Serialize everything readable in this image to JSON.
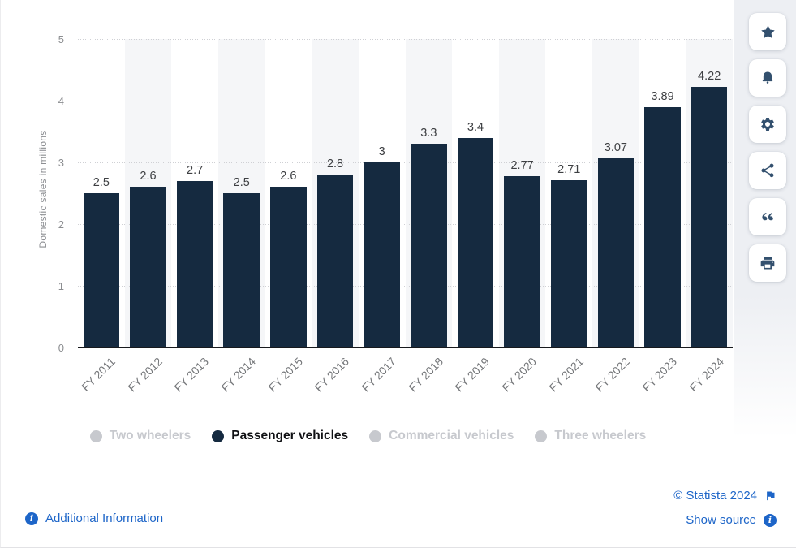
{
  "chart_data": {
    "type": "bar",
    "categories": [
      "FY 2011",
      "FY 2012",
      "FY 2013",
      "FY 2014",
      "FY 2015",
      "FY 2016",
      "FY 2017",
      "FY 2018",
      "FY 2019",
      "FY 2020",
      "FY 2021",
      "FY 2022",
      "FY 2023",
      "FY 2024"
    ],
    "series": [
      {
        "name": "Passenger vehicles",
        "values": [
          2.5,
          2.6,
          2.7,
          2.5,
          2.6,
          2.8,
          3,
          3.3,
          3.4,
          2.77,
          2.71,
          3.07,
          3.89,
          4.22
        ],
        "labels": [
          "2.5",
          "2.6",
          "2.7",
          "2.5",
          "2.6",
          "2.8",
          "3",
          "3.3",
          "3.4",
          "2.77",
          "2.71",
          "3.07",
          "3.89",
          "4.22"
        ],
        "color": "#152a40"
      }
    ],
    "title": "",
    "xlabel": "",
    "ylabel": "Domestic sales in millions",
    "ylim": [
      0,
      5
    ],
    "yticks": [
      "0",
      "1",
      "2",
      "3",
      "4",
      "5"
    ],
    "grid": "horizontal-dotted",
    "legend_position": "bottom",
    "alt_column_shading": true
  },
  "legend": {
    "items": [
      {
        "label": "Two wheelers",
        "active": false
      },
      {
        "label": "Passenger vehicles",
        "active": true
      },
      {
        "label": "Commercial vehicles",
        "active": false
      },
      {
        "label": "Three wheelers",
        "active": false
      }
    ],
    "active_color": "#152a40",
    "active_text_color": "#101114",
    "inactive_color": "#c7c9ce"
  },
  "toolbar": {
    "buttons": [
      {
        "name": "favorite",
        "icon": "star-icon"
      },
      {
        "name": "notifications",
        "icon": "bell-icon"
      },
      {
        "name": "settings",
        "icon": "gear-icon"
      },
      {
        "name": "share",
        "icon": "share-icon"
      },
      {
        "name": "cite",
        "icon": "quote-icon"
      },
      {
        "name": "print",
        "icon": "printer-icon"
      }
    ],
    "icon_color": "#33506e"
  },
  "footer": {
    "additional_information": {
      "label": "Additional Information",
      "icon": "info-icon"
    },
    "copyright": {
      "label": "© Statista 2024",
      "icon": "flag-icon"
    },
    "show_source": {
      "label": "Show source",
      "icon": "info-icon"
    },
    "link_color": "#1d65c8"
  }
}
